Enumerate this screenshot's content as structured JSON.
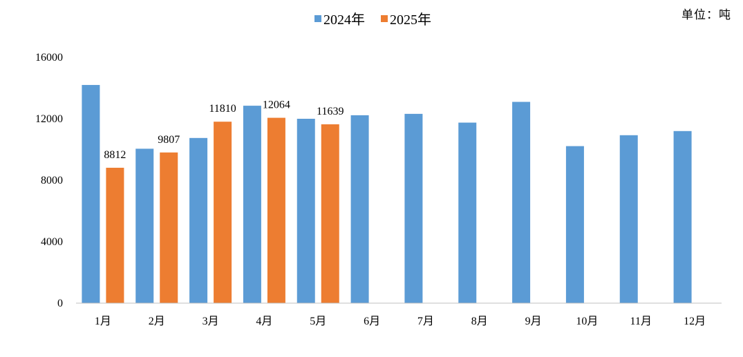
{
  "unit_label": "单位：吨",
  "chart_data": {
    "type": "bar",
    "categories": [
      "1月",
      "2月",
      "3月",
      "4月",
      "5月",
      "6月",
      "7月",
      "8月",
      "9月",
      "10月",
      "11月",
      "12月"
    ],
    "series": [
      {
        "name": "2024年",
        "color": "#5B9BD5",
        "values": [
          14200,
          10050,
          10750,
          12850,
          12000,
          12230,
          12320,
          11750,
          13100,
          10220,
          10930,
          11200
        ]
      },
      {
        "name": "2025年",
        "color": "#ED7D31",
        "values": [
          8812,
          9807,
          11810,
          12064,
          11639,
          null,
          null,
          null,
          null,
          null,
          null,
          null
        ],
        "data_labels": [
          "8812",
          "9807",
          "11810",
          "12064",
          "11639"
        ]
      }
    ],
    "y_ticks": [
      "0",
      "4000",
      "8000",
      "12000",
      "16000"
    ],
    "ylim": [
      0,
      16000
    ],
    "grid": false,
    "legend_position": "top-center"
  }
}
